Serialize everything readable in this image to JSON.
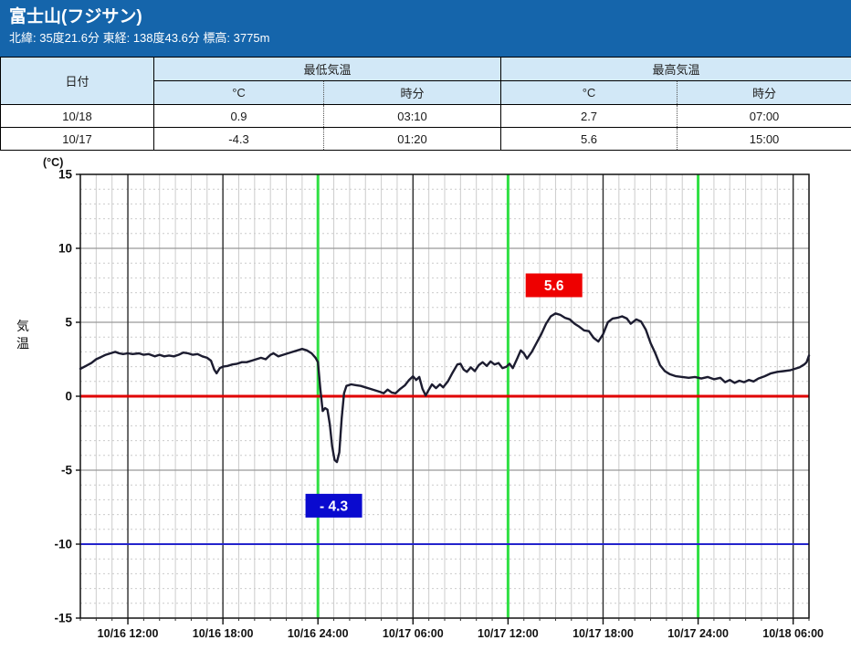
{
  "header": {
    "title": "富士山(フジサン)",
    "subtitle": "北緯: 35度21.6分 東経: 138度43.6分 標高: 3775m"
  },
  "colors": {
    "accent": "#1565ab",
    "table_header_bg": "#d2e8f7"
  },
  "table": {
    "col_date": "日付",
    "group_min": "最低気温",
    "group_max": "最高気温",
    "sub_temp": "°C",
    "sub_time": "時分",
    "rows": [
      {
        "date": "10/18",
        "min_c": "0.9",
        "min_t": "03:10",
        "max_c": "2.7",
        "max_t": "07:00"
      },
      {
        "date": "10/17",
        "min_c": "-4.3",
        "min_t": "01:20",
        "max_c": "5.6",
        "max_t": "15:00"
      }
    ]
  },
  "chart_data": {
    "type": "line",
    "ylabel": "気温",
    "y_unit": "(°C)",
    "ylim": [
      -15,
      15
    ],
    "y_major_step": 5,
    "y_minor_step": 1,
    "x_hours_range": [
      0,
      46
    ],
    "x_ticks": [
      {
        "t": 3,
        "label": "10/16 12:00"
      },
      {
        "t": 9,
        "label": "10/16 18:00"
      },
      {
        "t": 15,
        "label": "10/16 24:00"
      },
      {
        "t": 21,
        "label": "10/17 06:00"
      },
      {
        "t": 27,
        "label": "10/17 12:00"
      },
      {
        "t": 33,
        "label": "10/17 18:00"
      },
      {
        "t": 39,
        "label": "10/17 24:00"
      },
      {
        "t": 45,
        "label": "10/18 06:00"
      }
    ],
    "black_vertical_t": [
      3,
      9,
      21,
      33,
      45
    ],
    "green_vertical_t": [
      15,
      27,
      39
    ],
    "highlight_lines": [
      {
        "v": 0,
        "color": "#e00000",
        "width": 3
      },
      {
        "v": -10,
        "color": "#2424cc",
        "width": 2
      }
    ],
    "colors": {
      "line": "#1c1c30",
      "grid_minor": "#cccccc",
      "grid_major": "#999999",
      "grid_6h": "#2b2b2b",
      "day_line": "#30e044",
      "frame": "#111111",
      "axis_text": "#111111"
    },
    "legend": "none",
    "grid": "on",
    "series": [
      {
        "name": "気温",
        "color": "#1c1c30",
        "points": [
          [
            0,
            1.85
          ],
          [
            0.35,
            2.05
          ],
          [
            0.7,
            2.25
          ],
          [
            1,
            2.5
          ],
          [
            1.3,
            2.65
          ],
          [
            1.6,
            2.8
          ],
          [
            1.9,
            2.9
          ],
          [
            2.2,
            3.0
          ],
          [
            2.45,
            2.9
          ],
          [
            2.7,
            2.85
          ],
          [
            3,
            2.9
          ],
          [
            3.3,
            2.85
          ],
          [
            3.7,
            2.9
          ],
          [
            4,
            2.8
          ],
          [
            4.3,
            2.85
          ],
          [
            4.7,
            2.7
          ],
          [
            5,
            2.8
          ],
          [
            5.3,
            2.7
          ],
          [
            5.6,
            2.75
          ],
          [
            5.9,
            2.7
          ],
          [
            6.2,
            2.8
          ],
          [
            6.5,
            2.95
          ],
          [
            6.8,
            2.9
          ],
          [
            7.1,
            2.8
          ],
          [
            7.4,
            2.85
          ],
          [
            7.7,
            2.7
          ],
          [
            8,
            2.6
          ],
          [
            8.25,
            2.4
          ],
          [
            8.45,
            1.8
          ],
          [
            8.6,
            1.55
          ],
          [
            8.8,
            1.9
          ],
          [
            9,
            2.0
          ],
          [
            9.3,
            2.05
          ],
          [
            9.6,
            2.15
          ],
          [
            9.9,
            2.2
          ],
          [
            10.2,
            2.3
          ],
          [
            10.5,
            2.3
          ],
          [
            10.8,
            2.4
          ],
          [
            11.1,
            2.5
          ],
          [
            11.4,
            2.6
          ],
          [
            11.7,
            2.5
          ],
          [
            12,
            2.8
          ],
          [
            12.2,
            2.9
          ],
          [
            12.5,
            2.7
          ],
          [
            12.8,
            2.8
          ],
          [
            13.1,
            2.9
          ],
          [
            13.4,
            3.0
          ],
          [
            13.7,
            3.1
          ],
          [
            14,
            3.2
          ],
          [
            14.3,
            3.1
          ],
          [
            14.6,
            2.9
          ],
          [
            14.85,
            2.6
          ],
          [
            15,
            2.3
          ],
          [
            15.15,
            0.5
          ],
          [
            15.3,
            -1.0
          ],
          [
            15.45,
            -0.8
          ],
          [
            15.6,
            -0.9
          ],
          [
            15.75,
            -1.9
          ],
          [
            15.9,
            -3.4
          ],
          [
            16.05,
            -4.3
          ],
          [
            16.2,
            -4.45
          ],
          [
            16.35,
            -3.8
          ],
          [
            16.5,
            -1.5
          ],
          [
            16.65,
            0.2
          ],
          [
            16.8,
            0.7
          ],
          [
            17.1,
            0.8
          ],
          [
            17.4,
            0.75
          ],
          [
            17.7,
            0.7
          ],
          [
            18,
            0.6
          ],
          [
            18.3,
            0.5
          ],
          [
            18.6,
            0.4
          ],
          [
            18.9,
            0.3
          ],
          [
            19.15,
            0.2
          ],
          [
            19.4,
            0.45
          ],
          [
            19.65,
            0.25
          ],
          [
            19.9,
            0.2
          ],
          [
            20.2,
            0.5
          ],
          [
            20.5,
            0.75
          ],
          [
            20.75,
            1.1
          ],
          [
            21,
            1.35
          ],
          [
            21.2,
            1.1
          ],
          [
            21.4,
            1.3
          ],
          [
            21.6,
            0.5
          ],
          [
            21.8,
            0.05
          ],
          [
            22,
            0.45
          ],
          [
            22.2,
            0.8
          ],
          [
            22.45,
            0.55
          ],
          [
            22.7,
            0.8
          ],
          [
            22.9,
            0.6
          ],
          [
            23.2,
            1.0
          ],
          [
            23.5,
            1.6
          ],
          [
            23.8,
            2.15
          ],
          [
            24,
            2.2
          ],
          [
            24.2,
            1.8
          ],
          [
            24.4,
            1.65
          ],
          [
            24.65,
            1.95
          ],
          [
            24.9,
            1.7
          ],
          [
            25.15,
            2.1
          ],
          [
            25.4,
            2.3
          ],
          [
            25.65,
            2.05
          ],
          [
            25.9,
            2.35
          ],
          [
            26.15,
            2.15
          ],
          [
            26.4,
            2.25
          ],
          [
            26.65,
            1.9
          ],
          [
            26.9,
            2.0
          ],
          [
            27.1,
            2.2
          ],
          [
            27.3,
            1.9
          ],
          [
            27.6,
            2.6
          ],
          [
            27.8,
            3.1
          ],
          [
            28,
            2.9
          ],
          [
            28.2,
            2.55
          ],
          [
            28.5,
            3.0
          ],
          [
            28.8,
            3.6
          ],
          [
            29.1,
            4.2
          ],
          [
            29.4,
            4.9
          ],
          [
            29.7,
            5.4
          ],
          [
            30,
            5.6
          ],
          [
            30.3,
            5.5
          ],
          [
            30.6,
            5.3
          ],
          [
            30.9,
            5.2
          ],
          [
            31.2,
            4.9
          ],
          [
            31.5,
            4.7
          ],
          [
            31.8,
            4.45
          ],
          [
            32.1,
            4.4
          ],
          [
            32.4,
            3.95
          ],
          [
            32.7,
            3.7
          ],
          [
            33,
            4.2
          ],
          [
            33.3,
            5.0
          ],
          [
            33.6,
            5.25
          ],
          [
            33.9,
            5.3
          ],
          [
            34.2,
            5.4
          ],
          [
            34.5,
            5.25
          ],
          [
            34.75,
            4.9
          ],
          [
            35.1,
            5.2
          ],
          [
            35.4,
            5.05
          ],
          [
            35.7,
            4.5
          ],
          [
            36,
            3.6
          ],
          [
            36.3,
            2.9
          ],
          [
            36.6,
            2.1
          ],
          [
            36.9,
            1.7
          ],
          [
            37.2,
            1.5
          ],
          [
            37.6,
            1.35
          ],
          [
            38,
            1.3
          ],
          [
            38.4,
            1.25
          ],
          [
            38.8,
            1.3
          ],
          [
            39.2,
            1.2
          ],
          [
            39.6,
            1.3
          ],
          [
            40,
            1.15
          ],
          [
            40.4,
            1.25
          ],
          [
            40.7,
            0.95
          ],
          [
            41,
            1.1
          ],
          [
            41.3,
            0.9
          ],
          [
            41.6,
            1.05
          ],
          [
            41.9,
            0.95
          ],
          [
            42.2,
            1.1
          ],
          [
            42.5,
            1.0
          ],
          [
            42.8,
            1.2
          ],
          [
            43.2,
            1.35
          ],
          [
            43.6,
            1.55
          ],
          [
            44,
            1.65
          ],
          [
            44.4,
            1.7
          ],
          [
            44.8,
            1.75
          ],
          [
            45.1,
            1.85
          ],
          [
            45.4,
            1.95
          ],
          [
            45.7,
            2.15
          ],
          [
            45.85,
            2.3
          ],
          [
            46,
            2.75
          ]
        ]
      }
    ],
    "annotations": [
      {
        "text": "5.6",
        "t": 29.9,
        "v": 7.5,
        "bg": "#ee0000"
      },
      {
        "text": "- 4.3",
        "t": 16.0,
        "v": -7.4,
        "bg": "#0a0acf"
      }
    ]
  }
}
